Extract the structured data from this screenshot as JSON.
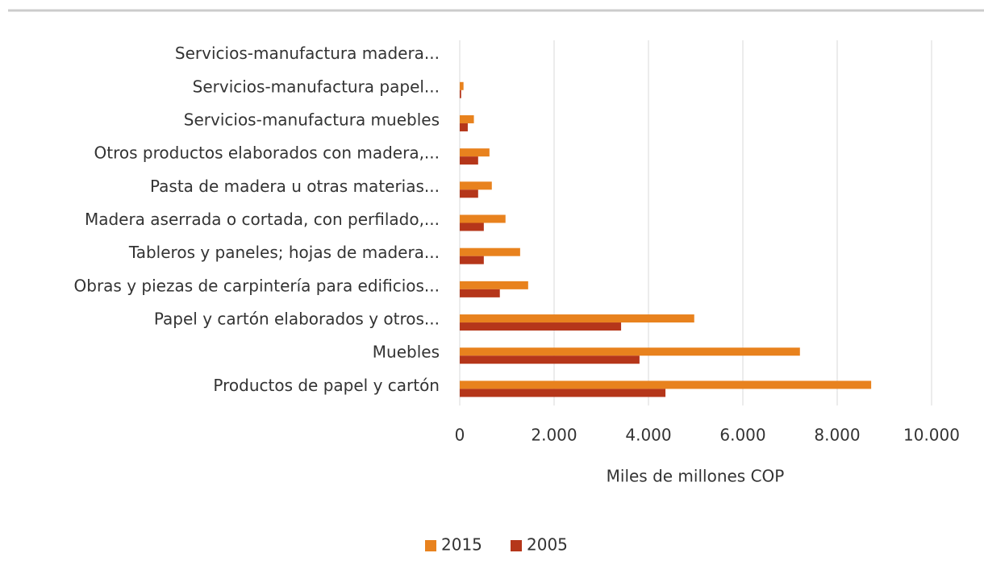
{
  "chart_data": {
    "type": "barh",
    "xlabel": "Miles de millones COP",
    "categories": [
      "Servicios-manufactura madera...",
      "Servicios-manufactura papel...",
      "Servicios-manufactura muebles",
      "Otros productos elaborados con madera,...",
      "Pasta de madera u otras materias...",
      "Madera aserrada o cortada, con perfilado,...",
      "Tableros y paneles; hojas de madera...",
      "Obras y piezas de carpintería para edificios...",
      "Papel y cartón elaborados y otros...",
      "Muebles",
      "Productos de papel y cartón"
    ],
    "series": [
      {
        "name": "2015",
        "color": "#e8821e",
        "values": [
          0,
          80,
          300,
          630,
          680,
          970,
          1280,
          1450,
          4970,
          7210,
          8720
        ]
      },
      {
        "name": "2005",
        "color": "#b5361a",
        "values": [
          0,
          30,
          170,
          390,
          390,
          510,
          510,
          850,
          3420,
          3810,
          4360
        ]
      }
    ],
    "xlim": [
      0,
      10000
    ],
    "xticks": [
      0,
      {
        "value": 2000,
        "label": "2.000"
      },
      {
        "value": 4000,
        "label": "4.000"
      },
      {
        "value": 6000,
        "label": "6.000"
      },
      {
        "value": 8000,
        "label": "8.000"
      },
      {
        "value": 10000,
        "label": "10.000"
      }
    ],
    "grid": true,
    "legend": "bottom"
  }
}
